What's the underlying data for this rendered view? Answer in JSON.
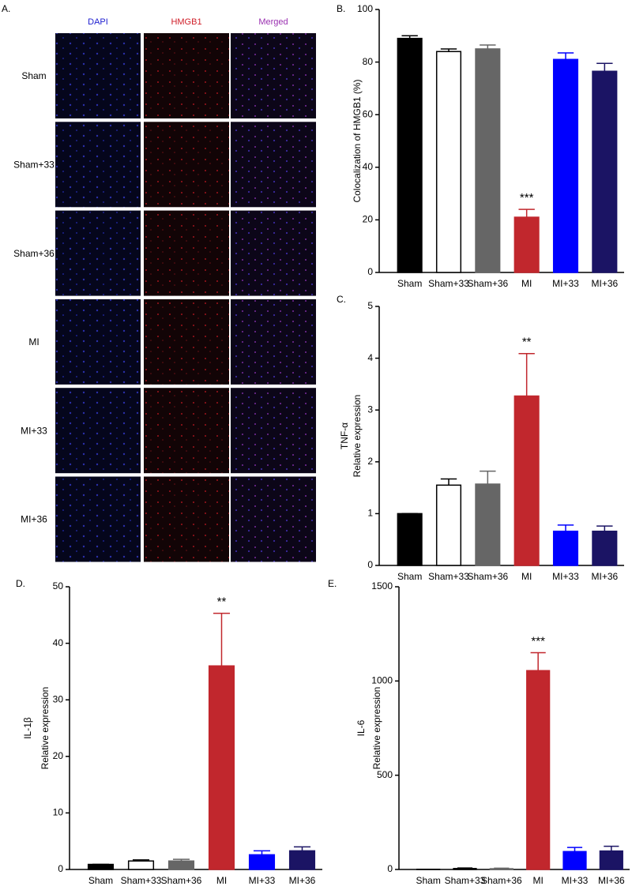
{
  "panel_a": {
    "label": "A.",
    "columns": [
      "DAPI",
      "HMGB1",
      "Merged"
    ],
    "rows": [
      "Sham",
      "Sham+33",
      "Sham+36",
      "MI",
      "MI+33",
      "MI+36"
    ]
  },
  "chart_data": [
    {
      "type": "bar",
      "panel": "B.",
      "ylabel": [
        "Colocalization of HMGB1 (%)"
      ],
      "categories": [
        "Sham",
        "Sham+33",
        "Sham+36",
        "MI",
        "MI+33",
        "MI+36"
      ],
      "values": [
        89,
        84,
        85,
        21,
        81,
        76.5
      ],
      "errors": [
        1,
        1,
        1.5,
        3,
        2.5,
        3
      ],
      "colors": [
        "#000000",
        "#ffffff",
        "#666666",
        "#c1272d",
        "#0000ff",
        "#1b1464"
      ],
      "annotation": {
        "text": "***",
        "category": "MI"
      },
      "ylim": [
        0,
        100
      ],
      "yticks": [
        0,
        20,
        40,
        60,
        80,
        100
      ]
    },
    {
      "type": "bar",
      "panel": "C.",
      "ylabel": [
        "TNF-α",
        "Relative expression"
      ],
      "categories": [
        "Sham",
        "Sham+33",
        "Sham+36",
        "MI",
        "MI+33",
        "MI+36"
      ],
      "values": [
        1.0,
        1.55,
        1.57,
        3.27,
        0.66,
        0.66
      ],
      "errors": [
        0,
        0.12,
        0.25,
        0.82,
        0.12,
        0.1
      ],
      "colors": [
        "#000000",
        "#ffffff",
        "#666666",
        "#c1272d",
        "#0000ff",
        "#1b1464"
      ],
      "annotation": {
        "text": "**",
        "category": "MI"
      },
      "ylim": [
        0,
        5
      ],
      "yticks": [
        0,
        1,
        2,
        3,
        4,
        5
      ]
    },
    {
      "type": "bar",
      "panel": "D.",
      "ylabel": [
        "IL-1β",
        "Relative expression"
      ],
      "categories": [
        "Sham",
        "Sham+33",
        "Sham+36",
        "MI",
        "MI+33",
        "MI+36"
      ],
      "values": [
        0.9,
        1.5,
        1.5,
        36,
        2.6,
        3.3
      ],
      "errors": [
        0,
        0.2,
        0.3,
        9.3,
        0.7,
        0.7
      ],
      "colors": [
        "#000000",
        "#ffffff",
        "#666666",
        "#c1272d",
        "#0000ff",
        "#1b1464"
      ],
      "annotation": {
        "text": "**",
        "category": "MI"
      },
      "ylim": [
        0,
        50
      ],
      "yticks": [
        0,
        10,
        20,
        30,
        40,
        50
      ]
    },
    {
      "type": "bar",
      "panel": "E.",
      "ylabel": [
        "IL-6",
        "Relative expression"
      ],
      "categories": [
        "Sham",
        "Sham+33",
        "Sham+36",
        "MI",
        "MI+33",
        "MI+36"
      ],
      "values": [
        1,
        5,
        4,
        1055,
        95,
        98
      ],
      "errors": [
        0,
        3,
        3,
        95,
        22,
        25
      ],
      "colors": [
        "#000000",
        "#ffffff",
        "#666666",
        "#c1272d",
        "#0000ff",
        "#1b1464"
      ],
      "annotation": {
        "text": "***",
        "category": "MI"
      },
      "ylim": [
        0,
        1500
      ],
      "yticks": [
        0,
        500,
        1000,
        1500
      ]
    }
  ]
}
